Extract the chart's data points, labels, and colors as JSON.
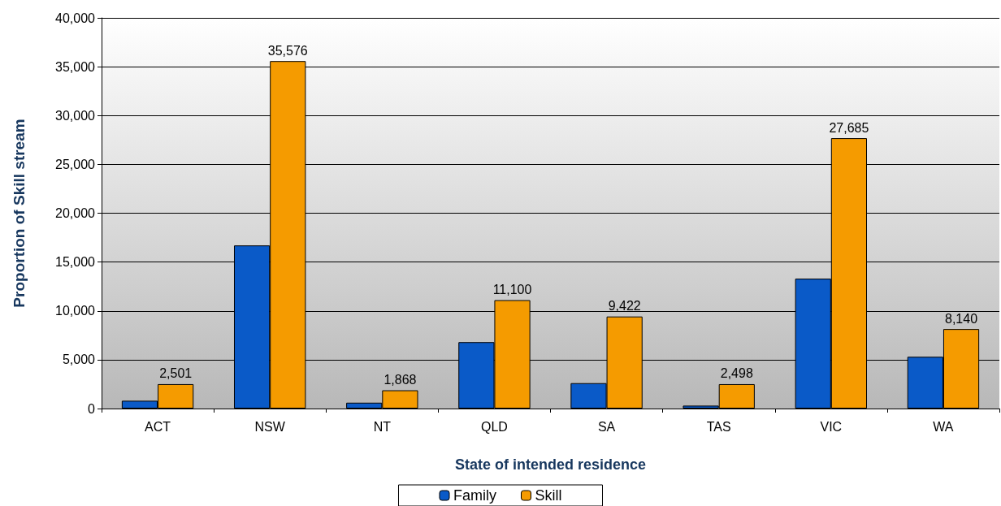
{
  "chart_data": {
    "type": "bar",
    "xlabel": "State of intended residence",
    "ylabel": "Proportion of Skill stream",
    "categories": [
      "ACT",
      "NSW",
      "NT",
      "QLD",
      "SA",
      "TAS",
      "VIC",
      "WA"
    ],
    "series": [
      {
        "name": "Family",
        "color": "#0a5ac8",
        "values": [
          800,
          16700,
          600,
          6800,
          2600,
          300,
          13300,
          5300
        ]
      },
      {
        "name": "Skill",
        "color": "#f59b00",
        "values": [
          2501,
          35576,
          1868,
          11100,
          9422,
          2498,
          27685,
          8140
        ],
        "value_labels": [
          "2,501",
          "35,576",
          "1,868",
          "11,100",
          "9,422",
          "2,498",
          "27,685",
          "8,140"
        ]
      }
    ],
    "ylim": [
      0,
      40000
    ],
    "yticks": [
      {
        "value": 0,
        "label": "0"
      },
      {
        "value": 5000,
        "label": "5,000"
      },
      {
        "value": 10000,
        "label": "10,000"
      },
      {
        "value": 15000,
        "label": "15,000"
      },
      {
        "value": 20000,
        "label": "20,000"
      },
      {
        "value": 25000,
        "label": "25,000"
      },
      {
        "value": 30000,
        "label": "30,000"
      },
      {
        "value": 35000,
        "label": "35,000"
      },
      {
        "value": 40000,
        "label": "40,000"
      }
    ],
    "grid": "y",
    "legend": "bottom"
  }
}
